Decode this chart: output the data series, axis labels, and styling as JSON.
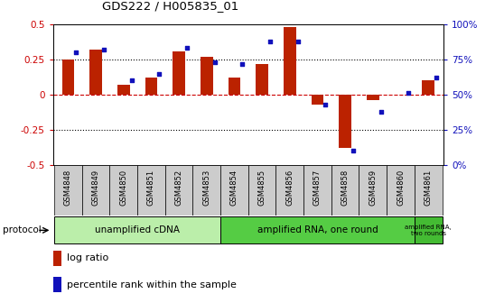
{
  "title": "GDS222 / H005835_01",
  "samples": [
    "GSM4848",
    "GSM4849",
    "GSM4850",
    "GSM4851",
    "GSM4852",
    "GSM4853",
    "GSM4854",
    "GSM4855",
    "GSM4856",
    "GSM4857",
    "GSM4858",
    "GSM4859",
    "GSM4860",
    "GSM4861"
  ],
  "log_ratio": [
    0.25,
    0.32,
    0.07,
    0.12,
    0.31,
    0.27,
    0.12,
    0.22,
    0.48,
    -0.07,
    -0.38,
    -0.04,
    0.0,
    0.1
  ],
  "percentile_rank": [
    80,
    82,
    60,
    65,
    83,
    73,
    72,
    88,
    88,
    43,
    10,
    38,
    51,
    62
  ],
  "bar_color": "#bb2200",
  "dot_color": "#1111bb",
  "ylim_left": [
    -0.5,
    0.5
  ],
  "ylim_right": [
    0,
    100
  ],
  "yticks_left": [
    -0.5,
    -0.25,
    0.0,
    0.25,
    0.5
  ],
  "yticks_right": [
    0,
    25,
    50,
    75,
    100
  ],
  "ytick_labels_right": [
    "0%",
    "25%",
    "50%",
    "75%",
    "100%"
  ],
  "protocol_groups": [
    {
      "label": "unamplified cDNA",
      "start": 0,
      "end": 5,
      "color": "#bbeeaa"
    },
    {
      "label": "amplified RNA, one round",
      "start": 6,
      "end": 12,
      "color": "#55cc44"
    },
    {
      "label": "amplified RNA,\ntwo rounds",
      "start": 13,
      "end": 13,
      "color": "#44bb33"
    }
  ],
  "legend_items": [
    {
      "label": "log ratio",
      "color": "#bb2200"
    },
    {
      "label": "percentile rank within the sample",
      "color": "#1111bb"
    }
  ],
  "bg_color": "#ffffff",
  "label_bg_color": "#cccccc",
  "figsize": [
    5.58,
    3.36
  ],
  "dpi": 100
}
